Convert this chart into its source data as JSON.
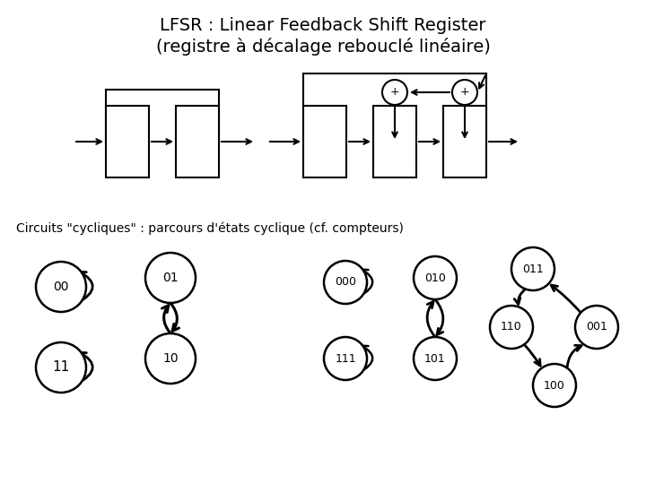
{
  "title_line1": "LFSR : Linear Feedback Shift Register",
  "title_line2": "(registre à décalage rebouclé linéaire)",
  "subtitle": "Circuits \"cycliques\" : parcours d'états cyclique (cf. compteurs)",
  "bg_color": "#ffffff"
}
